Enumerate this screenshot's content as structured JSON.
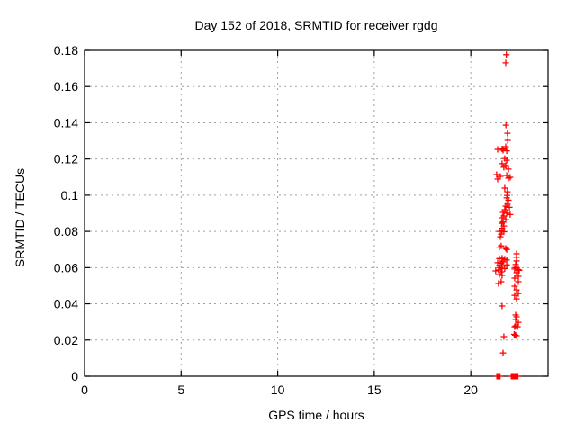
{
  "chart_data": {
    "type": "scatter",
    "title": "Day 152 of 2018, SRMTID for receiver rgdg",
    "xlabel": "GPS time / hours",
    "ylabel": "SRMTID / TECUs",
    "xlim": [
      0,
      24
    ],
    "ylim": [
      0,
      0.18
    ],
    "xticks": [
      0,
      5,
      10,
      15,
      20
    ],
    "xtick_labels": [
      "0",
      "5",
      "10",
      "15",
      "20"
    ],
    "yticks": [
      0,
      0.02,
      0.04,
      0.06,
      0.08,
      0.1,
      0.12,
      0.14,
      0.16,
      0.18
    ],
    "ytick_labels": [
      "0",
      "0.02",
      "0.04",
      "0.06",
      "0.08",
      "0.1",
      "0.12",
      "0.14",
      "0.16",
      "0.18"
    ],
    "grid": true,
    "grid_style": "dashed",
    "legend": "none",
    "marker": "plus",
    "colors": {
      "marker": "#ff0000",
      "grid": "#a0a0a0",
      "axis": "#000000",
      "background": "#ffffff"
    },
    "series": [
      {
        "name": "SRMTID",
        "color": "#ff0000",
        "points": [
          [
            21.84,
            0.1776
          ],
          [
            21.81,
            0.1731
          ],
          [
            21.82,
            0.1387
          ],
          [
            21.9,
            0.1342
          ],
          [
            21.91,
            0.1303
          ],
          [
            21.81,
            0.1268
          ],
          [
            21.39,
            0.1253
          ],
          [
            21.62,
            0.1255
          ],
          [
            21.67,
            0.1248
          ],
          [
            21.86,
            0.1245
          ],
          [
            21.76,
            0.1203
          ],
          [
            21.86,
            0.1193
          ],
          [
            21.62,
            0.1174
          ],
          [
            21.81,
            0.1164
          ],
          [
            21.71,
            0.1154
          ],
          [
            21.95,
            0.1144
          ],
          [
            21.34,
            0.1114
          ],
          [
            21.86,
            0.1109
          ],
          [
            21.53,
            0.1104
          ],
          [
            22.04,
            0.1099
          ],
          [
            21.95,
            0.1094
          ],
          [
            21.39,
            0.1089
          ],
          [
            21.76,
            0.1039
          ],
          [
            21.9,
            0.1019
          ],
          [
            21.88,
            0.0999
          ],
          [
            21.86,
            0.0985
          ],
          [
            21.95,
            0.0972
          ],
          [
            21.9,
            0.095
          ],
          [
            21.81,
            0.094
          ],
          [
            22.0,
            0.0933
          ],
          [
            21.76,
            0.092
          ],
          [
            21.67,
            0.0905
          ],
          [
            21.86,
            0.09
          ],
          [
            22.04,
            0.0893
          ],
          [
            21.71,
            0.0885
          ],
          [
            21.62,
            0.0875
          ],
          [
            21.81,
            0.0865
          ],
          [
            21.67,
            0.0852
          ],
          [
            21.6,
            0.0845
          ],
          [
            21.71,
            0.083
          ],
          [
            21.62,
            0.0818
          ],
          [
            21.62,
            0.0805
          ],
          [
            21.48,
            0.08
          ],
          [
            21.71,
            0.0798
          ],
          [
            21.57,
            0.0785
          ],
          [
            21.53,
            0.077
          ],
          [
            21.57,
            0.072
          ],
          [
            21.48,
            0.0713
          ],
          [
            21.81,
            0.0706
          ],
          [
            21.86,
            0.07
          ],
          [
            21.62,
            0.0652
          ],
          [
            21.48,
            0.065
          ],
          [
            21.76,
            0.0647
          ],
          [
            21.86,
            0.0642
          ],
          [
            21.67,
            0.0632
          ],
          [
            21.39,
            0.0627
          ],
          [
            21.57,
            0.0625
          ],
          [
            21.86,
            0.0615
          ],
          [
            21.48,
            0.0612
          ],
          [
            21.62,
            0.0608
          ],
          [
            21.5,
            0.06
          ],
          [
            21.62,
            0.0597
          ],
          [
            21.76,
            0.0594
          ],
          [
            21.43,
            0.0587
          ],
          [
            21.29,
            0.0582
          ],
          [
            21.57,
            0.0577
          ],
          [
            21.48,
            0.0562
          ],
          [
            21.62,
            0.0557
          ],
          [
            21.57,
            0.0522
          ],
          [
            21.43,
            0.0512
          ],
          [
            21.62,
            0.0388
          ],
          [
            21.71,
            0.0219
          ],
          [
            21.67,
            0.0129
          ],
          [
            22.37,
            0.0676
          ],
          [
            22.37,
            0.0657
          ],
          [
            22.37,
            0.0637
          ],
          [
            22.32,
            0.0617
          ],
          [
            22.32,
            0.06
          ],
          [
            22.27,
            0.0592
          ],
          [
            22.46,
            0.0589
          ],
          [
            22.51,
            0.0585
          ],
          [
            22.37,
            0.0572
          ],
          [
            22.46,
            0.0552
          ],
          [
            22.27,
            0.0542
          ],
          [
            22.46,
            0.0522
          ],
          [
            22.27,
            0.0497
          ],
          [
            22.37,
            0.0477
          ],
          [
            22.46,
            0.0457
          ],
          [
            22.27,
            0.0447
          ],
          [
            22.37,
            0.0427
          ],
          [
            22.32,
            0.0338
          ],
          [
            22.37,
            0.0328
          ],
          [
            22.32,
            0.0313
          ],
          [
            22.46,
            0.0298
          ],
          [
            22.32,
            0.0278
          ],
          [
            22.27,
            0.0273
          ],
          [
            22.42,
            0.0273
          ],
          [
            22.25,
            0.0231
          ],
          [
            22.3,
            0.0227
          ],
          [
            22.37,
            0.0224
          ],
          [
            21.35,
            0
          ],
          [
            21.39,
            0
          ],
          [
            21.43,
            0
          ],
          [
            21.47,
            0
          ],
          [
            21.51,
            0
          ],
          [
            22.1,
            0
          ],
          [
            22.14,
            0
          ],
          [
            22.18,
            0
          ],
          [
            22.22,
            0
          ],
          [
            22.26,
            0
          ],
          [
            22.3,
            0
          ],
          [
            22.34,
            0
          ],
          [
            22.42,
            0
          ],
          [
            22.44,
            0
          ]
        ]
      }
    ]
  }
}
